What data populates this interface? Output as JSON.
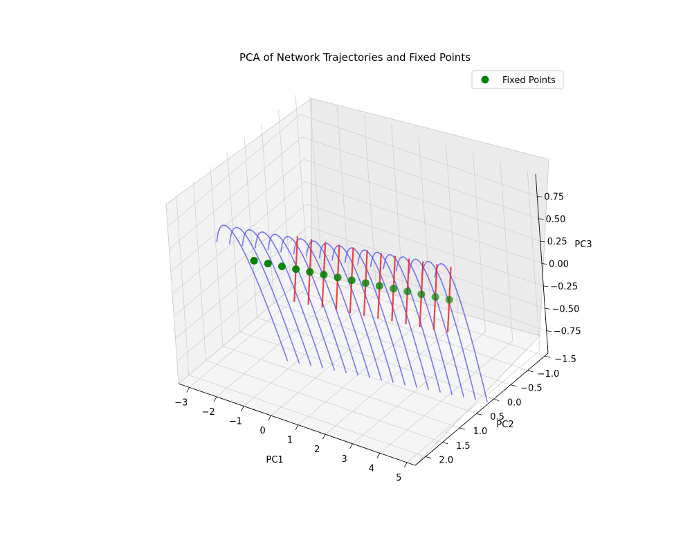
{
  "chart_data": {
    "type": "scatter",
    "title": "PCA of Network Trajectories and Fixed Points",
    "xlabel": "PC1",
    "ylabel": "PC2",
    "zlabel": "PC3",
    "x_ticks": [
      "−3",
      "−2",
      "−1",
      "0",
      "1",
      "2",
      "3",
      "4",
      "5"
    ],
    "y_ticks": [
      "−1.5",
      "−1.0",
      "−0.5",
      "0.0",
      "0.5",
      "1.0",
      "1.5",
      "2.0"
    ],
    "z_ticks": [
      "−0.75",
      "−0.50",
      "−0.25",
      "0.00",
      "0.25",
      "0.50",
      "0.75"
    ],
    "xlim": [
      -3.4,
      5.3
    ],
    "ylim": [
      -1.6,
      2.3
    ],
    "zlim": [
      -1.0,
      1.0
    ],
    "legend": {
      "label": "Fixed Points",
      "placement": "top-right"
    },
    "grid": true,
    "colors": {
      "trajectories": "#5555ee",
      "fixed_points": "#008000",
      "eigen_lines": "#ee2222"
    },
    "fixed_points": [
      {
        "x": -2.0,
        "y": 1.0,
        "z": 0.1
      },
      {
        "x": -1.55,
        "y": 0.95,
        "z": 0.1
      },
      {
        "x": -1.1,
        "y": 0.9,
        "z": 0.1
      },
      {
        "x": -0.65,
        "y": 0.85,
        "z": 0.1
      },
      {
        "x": -0.2,
        "y": 0.8,
        "z": 0.1
      },
      {
        "x": 0.25,
        "y": 0.75,
        "z": 0.1
      },
      {
        "x": 0.7,
        "y": 0.7,
        "z": 0.1
      },
      {
        "x": 1.15,
        "y": 0.65,
        "z": 0.1
      },
      {
        "x": 1.6,
        "y": 0.6,
        "z": 0.1
      },
      {
        "x": 2.05,
        "y": 0.55,
        "z": 0.1
      },
      {
        "x": 2.5,
        "y": 0.5,
        "z": 0.1
      },
      {
        "x": 2.95,
        "y": 0.45,
        "z": 0.1
      },
      {
        "x": 3.4,
        "y": 0.4,
        "z": 0.1
      },
      {
        "x": 3.85,
        "y": 0.35,
        "z": 0.1
      },
      {
        "x": 4.3,
        "y": 0.3,
        "z": 0.1
      }
    ],
    "eigen_lines": [
      {
        "x": -0.65,
        "y": 0.85,
        "z": 0.1
      },
      {
        "x": -0.2,
        "y": 0.8,
        "z": 0.1
      },
      {
        "x": 0.25,
        "y": 0.75,
        "z": 0.1
      },
      {
        "x": 0.7,
        "y": 0.7,
        "z": 0.1
      },
      {
        "x": 1.15,
        "y": 0.65,
        "z": 0.1
      },
      {
        "x": 1.6,
        "y": 0.6,
        "z": 0.1
      },
      {
        "x": 2.05,
        "y": 0.55,
        "z": 0.1
      },
      {
        "x": 2.5,
        "y": 0.5,
        "z": 0.1
      },
      {
        "x": 2.95,
        "y": 0.45,
        "z": 0.1
      },
      {
        "x": 3.4,
        "y": 0.4,
        "z": 0.1
      },
      {
        "x": 3.85,
        "y": 0.35,
        "z": 0.1
      },
      {
        "x": 4.3,
        "y": 0.3,
        "z": 0.1
      }
    ],
    "trajectory_count": 18
  }
}
